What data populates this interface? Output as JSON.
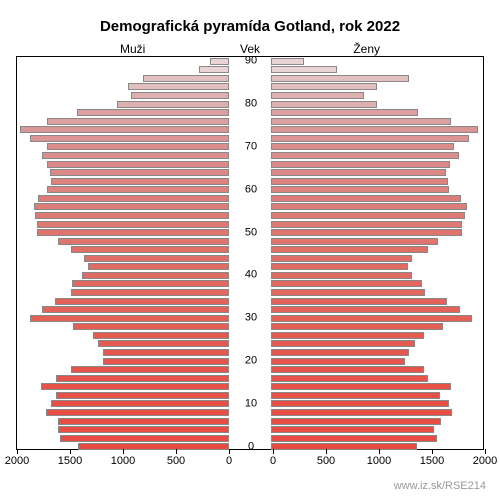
{
  "title": "Demografická pyramída Gotland, rok 2022",
  "labels": {
    "left": "Muži",
    "center": "Vek",
    "right": "Ženy"
  },
  "attribution": "www.iz.sk/RSE214",
  "pyramid": {
    "type": "population-pyramid",
    "age_step": 2,
    "age_min": 0,
    "age_max": 90,
    "xlim": [
      0,
      2000
    ],
    "xticks": [
      0,
      500,
      1000,
      1500,
      2000
    ],
    "ytick_labels": [
      0,
      10,
      20,
      30,
      40,
      50,
      60,
      70,
      80,
      90
    ],
    "title_fontsize": 15,
    "label_fontsize": 12,
    "tick_fontsize": 11,
    "bar_border_color": "#888888",
    "background_color": "#ffffff",
    "males": [
      {
        "age": 0,
        "value": 1420,
        "color": "#e84b42"
      },
      {
        "age": 2,
        "value": 1590,
        "color": "#e84b42"
      },
      {
        "age": 4,
        "value": 1610,
        "color": "#e84d44"
      },
      {
        "age": 6,
        "value": 1610,
        "color": "#e84d44"
      },
      {
        "age": 8,
        "value": 1730,
        "color": "#e74f46"
      },
      {
        "age": 10,
        "value": 1680,
        "color": "#e74f46"
      },
      {
        "age": 12,
        "value": 1630,
        "color": "#e75148"
      },
      {
        "age": 14,
        "value": 1770,
        "color": "#e75148"
      },
      {
        "age": 16,
        "value": 1630,
        "color": "#e6534a"
      },
      {
        "age": 18,
        "value": 1490,
        "color": "#e6534a"
      },
      {
        "age": 20,
        "value": 1190,
        "color": "#e5574e"
      },
      {
        "age": 22,
        "value": 1190,
        "color": "#e5574e"
      },
      {
        "age": 24,
        "value": 1240,
        "color": "#e55b52"
      },
      {
        "age": 26,
        "value": 1280,
        "color": "#e55b52"
      },
      {
        "age": 28,
        "value": 1470,
        "color": "#e45f56"
      },
      {
        "age": 30,
        "value": 1880,
        "color": "#e45f56"
      },
      {
        "age": 32,
        "value": 1760,
        "color": "#e3635a"
      },
      {
        "age": 34,
        "value": 1640,
        "color": "#e3635a"
      },
      {
        "age": 36,
        "value": 1490,
        "color": "#e2675e"
      },
      {
        "age": 38,
        "value": 1480,
        "color": "#e2675e"
      },
      {
        "age": 40,
        "value": 1390,
        "color": "#e16b63"
      },
      {
        "age": 42,
        "value": 1330,
        "color": "#e16b63"
      },
      {
        "age": 44,
        "value": 1370,
        "color": "#e06f68"
      },
      {
        "age": 46,
        "value": 1490,
        "color": "#e06f68"
      },
      {
        "age": 48,
        "value": 1610,
        "color": "#df736d"
      },
      {
        "age": 50,
        "value": 1810,
        "color": "#df736d"
      },
      {
        "age": 52,
        "value": 1810,
        "color": "#de7873"
      },
      {
        "age": 54,
        "value": 1830,
        "color": "#de7873"
      },
      {
        "age": 56,
        "value": 1840,
        "color": "#dd7d79"
      },
      {
        "age": 58,
        "value": 1800,
        "color": "#dd7d79"
      },
      {
        "age": 60,
        "value": 1720,
        "color": "#dc827f"
      },
      {
        "age": 62,
        "value": 1680,
        "color": "#dc827f"
      },
      {
        "age": 64,
        "value": 1690,
        "color": "#db8886"
      },
      {
        "age": 66,
        "value": 1720,
        "color": "#db8886"
      },
      {
        "age": 68,
        "value": 1760,
        "color": "#db8e8d"
      },
      {
        "age": 70,
        "value": 1720,
        "color": "#db8e8d"
      },
      {
        "age": 72,
        "value": 1880,
        "color": "#db9595"
      },
      {
        "age": 74,
        "value": 1970,
        "color": "#db9595"
      },
      {
        "age": 76,
        "value": 1720,
        "color": "#dca0a0"
      },
      {
        "age": 78,
        "value": 1430,
        "color": "#dca0a0"
      },
      {
        "age": 80,
        "value": 1060,
        "color": "#deafaf"
      },
      {
        "age": 82,
        "value": 920,
        "color": "#deafaf"
      },
      {
        "age": 84,
        "value": 950,
        "color": "#e2c0c0"
      },
      {
        "age": 86,
        "value": 810,
        "color": "#e2c0c0"
      },
      {
        "age": 88,
        "value": 280,
        "color": "#e8d4d4"
      },
      {
        "age": 90,
        "value": 180,
        "color": "#e8d4d4"
      }
    ],
    "females": [
      {
        "age": 0,
        "value": 1380,
        "color": "#e84b42"
      },
      {
        "age": 2,
        "value": 1570,
        "color": "#e84b42"
      },
      {
        "age": 4,
        "value": 1540,
        "color": "#e84d44"
      },
      {
        "age": 6,
        "value": 1600,
        "color": "#e84d44"
      },
      {
        "age": 8,
        "value": 1710,
        "color": "#e74f46"
      },
      {
        "age": 10,
        "value": 1680,
        "color": "#e74f46"
      },
      {
        "age": 12,
        "value": 1590,
        "color": "#e75148"
      },
      {
        "age": 14,
        "value": 1700,
        "color": "#e75148"
      },
      {
        "age": 16,
        "value": 1480,
        "color": "#e6534a"
      },
      {
        "age": 18,
        "value": 1440,
        "color": "#e6534a"
      },
      {
        "age": 20,
        "value": 1260,
        "color": "#e5574e"
      },
      {
        "age": 22,
        "value": 1300,
        "color": "#e5574e"
      },
      {
        "age": 24,
        "value": 1360,
        "color": "#e55b52"
      },
      {
        "age": 26,
        "value": 1440,
        "color": "#e55b52"
      },
      {
        "age": 28,
        "value": 1620,
        "color": "#e45f56"
      },
      {
        "age": 30,
        "value": 1900,
        "color": "#e45f56"
      },
      {
        "age": 32,
        "value": 1780,
        "color": "#e3635a"
      },
      {
        "age": 34,
        "value": 1660,
        "color": "#e3635a"
      },
      {
        "age": 36,
        "value": 1450,
        "color": "#e2675e"
      },
      {
        "age": 38,
        "value": 1420,
        "color": "#e2675e"
      },
      {
        "age": 40,
        "value": 1330,
        "color": "#e16b63"
      },
      {
        "age": 42,
        "value": 1290,
        "color": "#e16b63"
      },
      {
        "age": 44,
        "value": 1330,
        "color": "#e06f68"
      },
      {
        "age": 46,
        "value": 1480,
        "color": "#e06f68"
      },
      {
        "age": 48,
        "value": 1580,
        "color": "#df736d"
      },
      {
        "age": 50,
        "value": 1800,
        "color": "#df736d"
      },
      {
        "age": 52,
        "value": 1800,
        "color": "#de7873"
      },
      {
        "age": 54,
        "value": 1830,
        "color": "#de7873"
      },
      {
        "age": 56,
        "value": 1850,
        "color": "#dd7d79"
      },
      {
        "age": 58,
        "value": 1790,
        "color": "#dd7d79"
      },
      {
        "age": 60,
        "value": 1680,
        "color": "#dc827f"
      },
      {
        "age": 62,
        "value": 1670,
        "color": "#dc827f"
      },
      {
        "age": 64,
        "value": 1650,
        "color": "#db8886"
      },
      {
        "age": 66,
        "value": 1690,
        "color": "#db8886"
      },
      {
        "age": 68,
        "value": 1770,
        "color": "#db8e8d"
      },
      {
        "age": 70,
        "value": 1730,
        "color": "#db8e8d"
      },
      {
        "age": 72,
        "value": 1870,
        "color": "#db9595"
      },
      {
        "age": 74,
        "value": 1950,
        "color": "#db9595"
      },
      {
        "age": 76,
        "value": 1700,
        "color": "#dca0a0"
      },
      {
        "age": 78,
        "value": 1390,
        "color": "#dca0a0"
      },
      {
        "age": 80,
        "value": 1000,
        "color": "#deafaf"
      },
      {
        "age": 82,
        "value": 880,
        "color": "#deafaf"
      },
      {
        "age": 84,
        "value": 1000,
        "color": "#e2c0c0"
      },
      {
        "age": 86,
        "value": 1300,
        "color": "#e2c0c0"
      },
      {
        "age": 88,
        "value": 620,
        "color": "#e8d4d4"
      },
      {
        "age": 90,
        "value": 310,
        "color": "#e8d4d4"
      }
    ]
  }
}
